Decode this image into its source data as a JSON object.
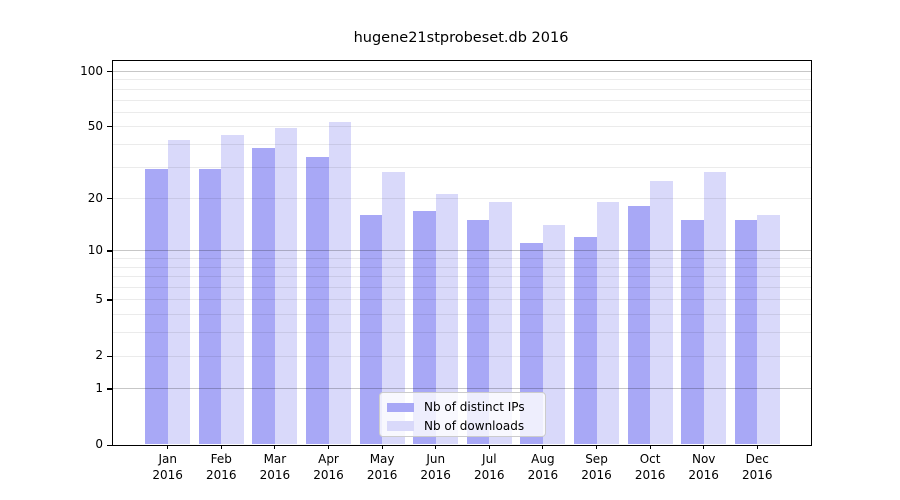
{
  "title": "hugene21stprobeset.db 2016",
  "legend": {
    "items": [
      {
        "label": "Nb of distinct IPs",
        "series": "ips"
      },
      {
        "label": "Nb of downloads",
        "series": "downloads"
      }
    ]
  },
  "colors": {
    "ips": "#a8a8f6",
    "downloads": "#d9d9fa",
    "grid_major": "rgba(0,0,0,0.22)",
    "grid_minor": "rgba(0,0,0,0.08)",
    "spine": "#000000",
    "legend_border": "#cccccc",
    "legend_bg": "rgba(255,255,255,0.8)"
  },
  "chart_data": {
    "type": "bar",
    "title": "hugene21stprobeset.db 2016",
    "categories": [
      "Jan",
      "Feb",
      "Mar",
      "Apr",
      "May",
      "Jun",
      "Jul",
      "Aug",
      "Sep",
      "Oct",
      "Nov",
      "Dec"
    ],
    "year": "2016",
    "series": [
      {
        "name": "Nb of distinct IPs",
        "values": [
          29,
          29,
          38,
          34,
          16,
          17,
          15,
          11,
          12,
          18,
          15,
          15
        ]
      },
      {
        "name": "Nb of downloads",
        "values": [
          42,
          45,
          49,
          53,
          28,
          21,
          19,
          14,
          19,
          25,
          28,
          16
        ]
      }
    ],
    "yscale": "log10(1+x)",
    "ylim": [
      0,
      115
    ],
    "y_tick_values": [
      100,
      50,
      20,
      10,
      5,
      2,
      1,
      0
    ],
    "y_tick_labels": [
      "100",
      "50",
      "20",
      "10",
      "5",
      "2",
      "1",
      "0"
    ],
    "grid_major_values": [
      1,
      10,
      100
    ],
    "grid_minor_values": [
      2,
      3,
      4,
      5,
      6,
      7,
      8,
      9,
      20,
      30,
      40,
      50,
      60,
      70,
      80,
      90
    ],
    "grid": true,
    "legend_position": "lower center"
  }
}
